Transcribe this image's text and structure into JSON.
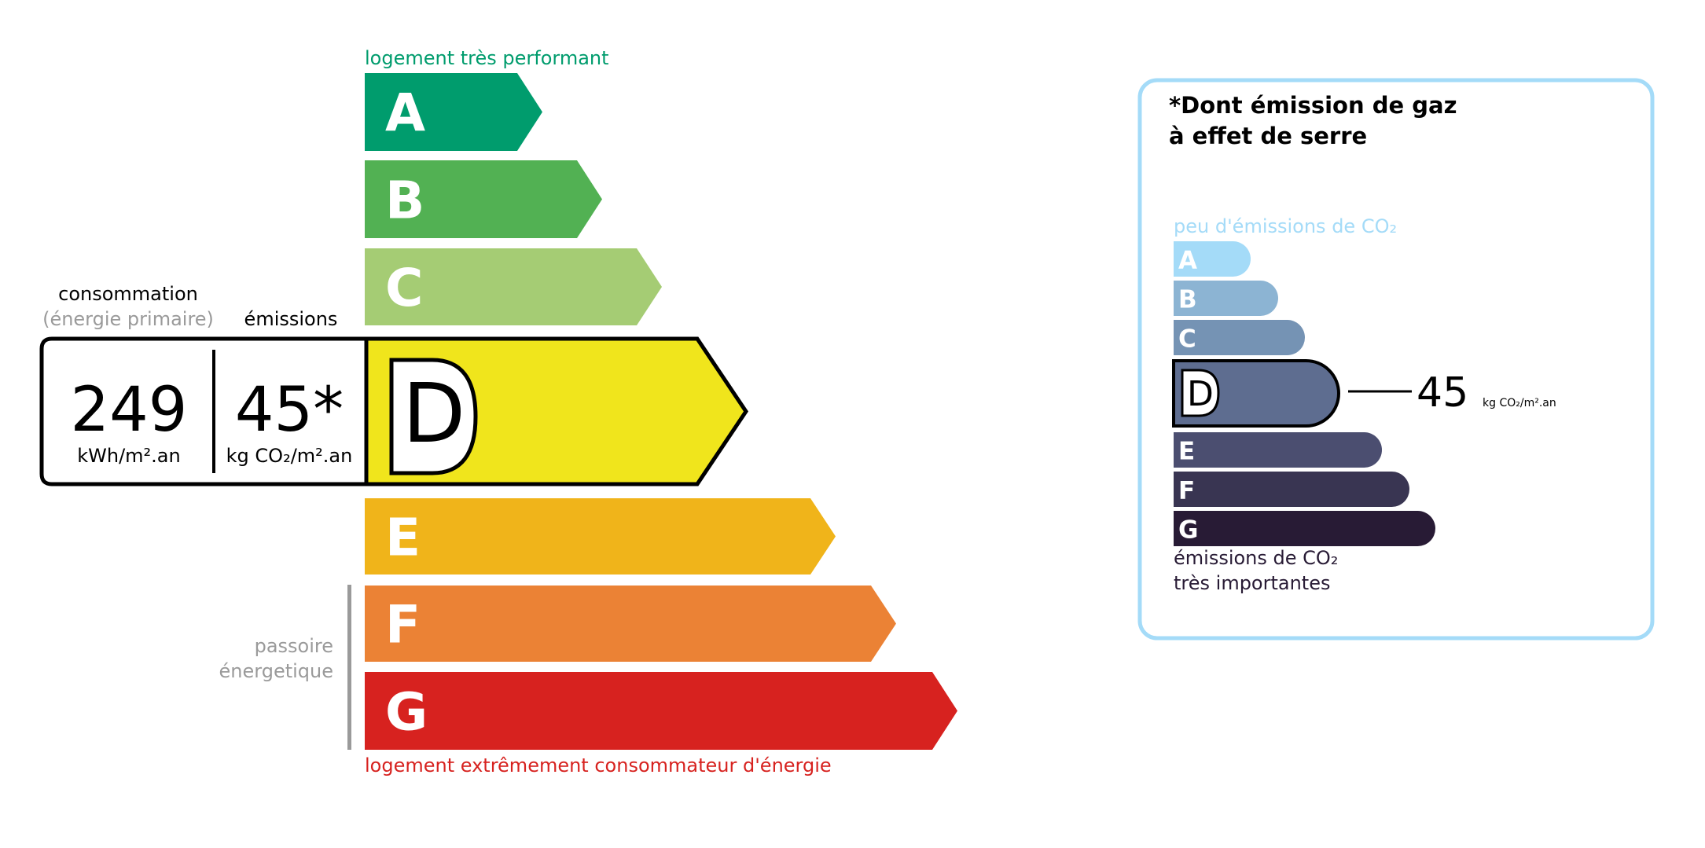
{
  "energy": {
    "top_label": "logement très performant",
    "bottom_label": "logement extrêmement consommateur d'énergie",
    "passoire_label_1": "passoire",
    "passoire_label_2": "énergetique",
    "consumption_header": "consommation",
    "consumption_subheader": "(énergie primaire)",
    "emissions_header": "émissions",
    "consumption_value": "249",
    "consumption_unit": "kWh/m².an",
    "emissions_value": "45*",
    "emissions_unit": "kg CO₂/m².an",
    "current_class": "D",
    "classes": [
      {
        "letter": "A",
        "color": "#009c6d"
      },
      {
        "letter": "B",
        "color": "#52b153"
      },
      {
        "letter": "C",
        "color": "#a5cc74"
      },
      {
        "letter": "D",
        "color": "#f0e51c"
      },
      {
        "letter": "E",
        "color": "#f0b41a"
      },
      {
        "letter": "F",
        "color": "#eb8235"
      },
      {
        "letter": "G",
        "color": "#d7221f"
      }
    ]
  },
  "ghg": {
    "title_line1": "*Dont émission de gaz",
    "title_line2": "à effet de serre",
    "top_label": "peu d'émissions de CO₂",
    "bottom_label_1": "émissions de CO₂",
    "bottom_label_2": "très importantes",
    "value": "45",
    "unit": "kg CO₂/m².an",
    "current_class": "D",
    "border_color": "#a4dbf8",
    "classes": [
      {
        "letter": "A",
        "color": "#a4dbf8"
      },
      {
        "letter": "B",
        "color": "#8cb4d3"
      },
      {
        "letter": "C",
        "color": "#7593b4"
      },
      {
        "letter": "D",
        "color": "#5e6d90"
      },
      {
        "letter": "E",
        "color": "#4b4e70"
      },
      {
        "letter": "F",
        "color": "#393552"
      },
      {
        "letter": "G",
        "color": "#281b35"
      }
    ]
  }
}
